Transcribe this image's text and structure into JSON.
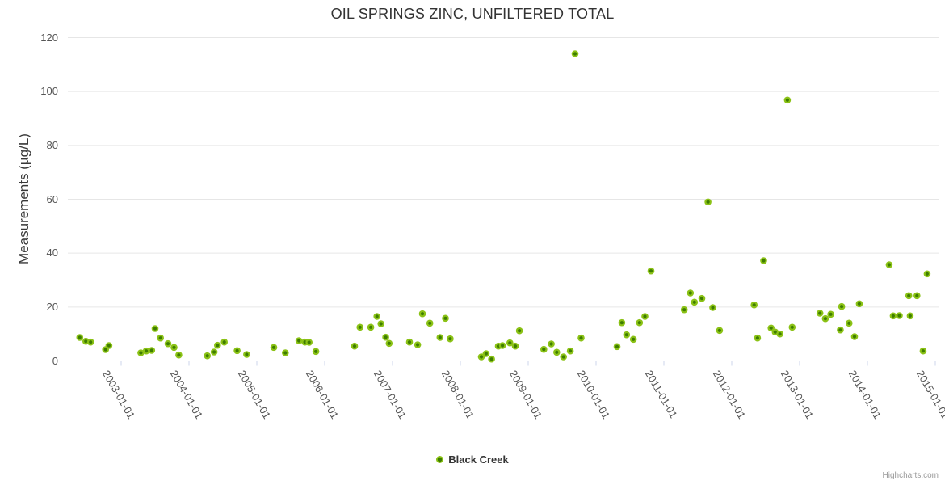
{
  "title": "OIL SPRINGS ZINC, UNFILTERED TOTAL",
  "credit": "Highcharts.com",
  "legend": {
    "label": "Black Creek"
  },
  "colors": {
    "title_text": "#333333",
    "axis_label_text": "#555555",
    "grid_line": "#e6e6e6",
    "axis_line": "#ccd6eb",
    "marker_outer": "#8bc216",
    "marker_inner": "#3e7d00",
    "legend_text": "#333333",
    "credit_text": "#999999"
  },
  "chart_data": {
    "type": "scatter",
    "title": "OIL SPRINGS ZINC, UNFILTERED TOTAL",
    "xlabel": "",
    "ylabel": "Measurements (µg/L)",
    "ylim": [
      0,
      120
    ],
    "yticks": [
      0,
      20,
      40,
      60,
      80,
      100,
      120
    ],
    "grid": true,
    "legend_position": "bottom-center",
    "x_unit": "decimal_year",
    "xlim": [
      2002.23,
      2015.06
    ],
    "xtick_years": [
      2003,
      2004,
      2005,
      2006,
      2007,
      2008,
      2009,
      2010,
      2011,
      2012,
      2013,
      2014,
      2015
    ],
    "xtick_labels": [
      "2003-01-01",
      "2004-01-01",
      "2005-01-01",
      "2006-01-01",
      "2007-01-01",
      "2008-01-01",
      "2009-01-01",
      "2010-01-01",
      "2011-01-01",
      "2012-01-01",
      "2013-01-01",
      "2014-01-01",
      "2015-01-01"
    ],
    "series": [
      {
        "name": "Black Creek",
        "color": "#8bc216",
        "points": [
          [
            2002.39,
            8.7
          ],
          [
            2002.48,
            7.3
          ],
          [
            2002.55,
            7.0
          ],
          [
            2002.77,
            4.2
          ],
          [
            2002.82,
            5.7
          ],
          [
            2003.29,
            3.0
          ],
          [
            2003.37,
            3.7
          ],
          [
            2003.45,
            3.9
          ],
          [
            2003.5,
            12.0
          ],
          [
            2003.58,
            8.5
          ],
          [
            2003.69,
            6.4
          ],
          [
            2003.78,
            5.0
          ],
          [
            2003.85,
            2.2
          ],
          [
            2004.27,
            1.9
          ],
          [
            2004.37,
            3.3
          ],
          [
            2004.42,
            5.8
          ],
          [
            2004.52,
            7.0
          ],
          [
            2004.71,
            3.8
          ],
          [
            2004.85,
            2.4
          ],
          [
            2005.25,
            5.0
          ],
          [
            2005.42,
            3.0
          ],
          [
            2005.62,
            7.5
          ],
          [
            2005.71,
            7.0
          ],
          [
            2005.77,
            6.9
          ],
          [
            2005.87,
            3.5
          ],
          [
            2006.44,
            5.5
          ],
          [
            2006.52,
            12.5
          ],
          [
            2006.68,
            12.5
          ],
          [
            2006.77,
            16.5
          ],
          [
            2006.83,
            13.8
          ],
          [
            2006.9,
            8.8
          ],
          [
            2006.95,
            6.5
          ],
          [
            2007.25,
            7.0
          ],
          [
            2007.37,
            6.0
          ],
          [
            2007.44,
            17.5
          ],
          [
            2007.55,
            14.0
          ],
          [
            2007.7,
            8.7
          ],
          [
            2007.78,
            15.8
          ],
          [
            2007.85,
            8.2
          ],
          [
            2008.31,
            1.5
          ],
          [
            2008.38,
            2.7
          ],
          [
            2008.46,
            0.7
          ],
          [
            2008.56,
            5.5
          ],
          [
            2008.62,
            5.7
          ],
          [
            2008.73,
            6.7
          ],
          [
            2008.81,
            5.5
          ],
          [
            2008.87,
            11.2
          ],
          [
            2009.23,
            4.3
          ],
          [
            2009.34,
            6.3
          ],
          [
            2009.42,
            3.2
          ],
          [
            2009.52,
            1.5
          ],
          [
            2009.62,
            3.7
          ],
          [
            2009.69,
            114.0
          ],
          [
            2009.78,
            8.5
          ],
          [
            2010.31,
            5.3
          ],
          [
            2010.38,
            14.2
          ],
          [
            2010.45,
            9.7
          ],
          [
            2010.55,
            8.0
          ],
          [
            2010.64,
            14.2
          ],
          [
            2010.72,
            16.5
          ],
          [
            2010.81,
            33.4
          ],
          [
            2011.3,
            19.0
          ],
          [
            2011.39,
            25.2
          ],
          [
            2011.45,
            21.8
          ],
          [
            2011.56,
            23.2
          ],
          [
            2011.65,
            59.0
          ],
          [
            2011.72,
            19.8
          ],
          [
            2011.82,
            11.3
          ],
          [
            2012.33,
            20.8
          ],
          [
            2012.38,
            8.5
          ],
          [
            2012.47,
            37.2
          ],
          [
            2012.58,
            12.2
          ],
          [
            2012.64,
            10.7
          ],
          [
            2012.71,
            10.0
          ],
          [
            2012.82,
            96.8
          ],
          [
            2012.89,
            12.5
          ],
          [
            2013.3,
            17.7
          ],
          [
            2013.38,
            15.7
          ],
          [
            2013.46,
            17.3
          ],
          [
            2013.6,
            11.5
          ],
          [
            2013.62,
            20.2
          ],
          [
            2013.73,
            14.0
          ],
          [
            2013.81,
            9.0
          ],
          [
            2013.88,
            21.2
          ],
          [
            2014.32,
            35.7
          ],
          [
            2014.38,
            16.7
          ],
          [
            2014.47,
            16.8
          ],
          [
            2014.61,
            24.2
          ],
          [
            2014.63,
            16.7
          ],
          [
            2014.73,
            24.2
          ],
          [
            2014.82,
            3.7
          ],
          [
            2014.88,
            32.3
          ]
        ]
      }
    ]
  }
}
